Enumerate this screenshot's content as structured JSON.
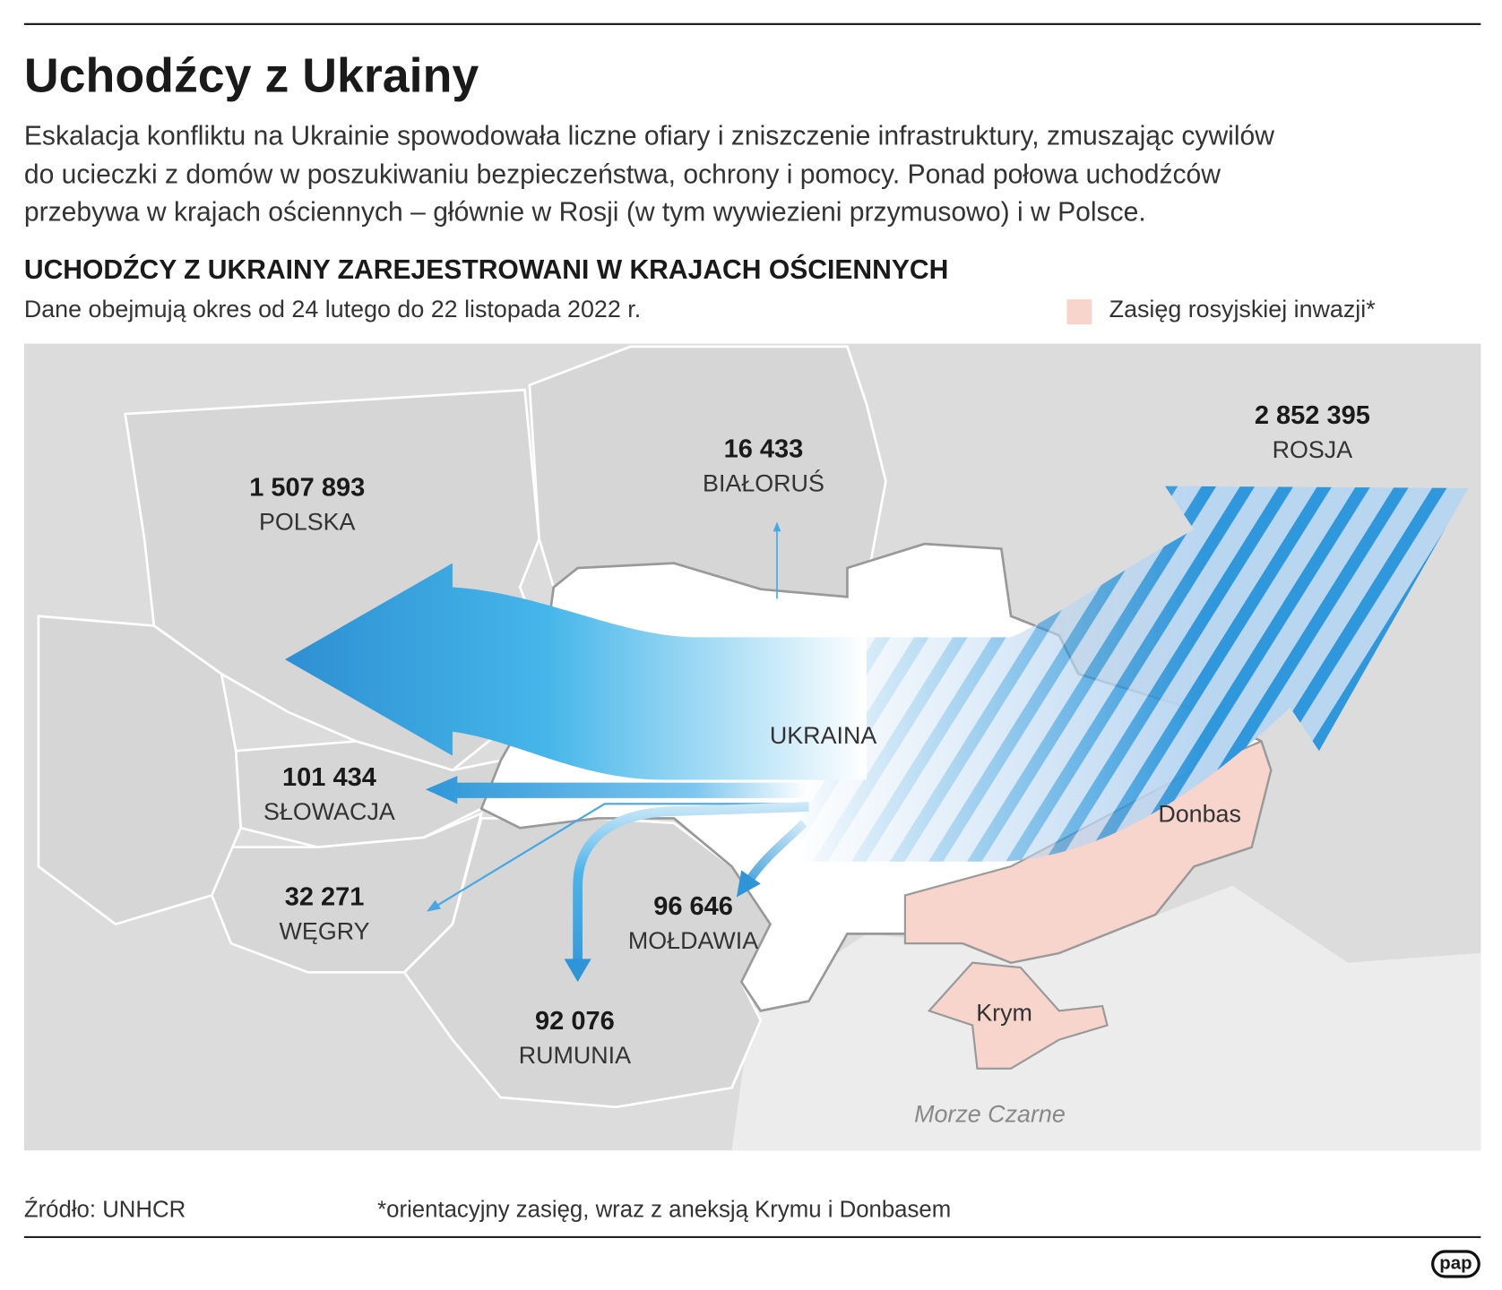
{
  "header": {
    "title": "Uchodźcy z Ukrainy",
    "description": [
      "Eskalacja konfliktu na Ukrainie spowodowała liczne ofiary i zniszczenie infrastruktury, zmuszając cywilów",
      "do ucieczki z domów w poszukiwaniu bezpieczeństwa, ochrony i pomocy. Ponad połowa uchodźców",
      "przebywa w krajach ościennych – głównie w Rosji (w tym wywiezieni przymusowo) i w Polsce."
    ]
  },
  "map": {
    "title": "UCHODŹCY Z UKRAINY ZAREJESTROWANI W KRAJACH OŚCIENNYCH",
    "subtitle": "Dane obejmują okres od 24 lutego do 22 listopada 2022 r.",
    "legend": "Zasięg rosyjskiej inwazji*",
    "countries": [
      {
        "name": "ROSJA",
        "refugees": "2 852 395"
      },
      {
        "name": "POLSKA",
        "refugees": "1 507 893"
      },
      {
        "name": "SŁOWACJA",
        "refugees": "101 434"
      },
      {
        "name": "MOŁDAWIA",
        "refugees": "96 646"
      },
      {
        "name": "RUMUNIA",
        "refugees": "92 076"
      },
      {
        "name": "WĘGRY",
        "refugees": "32 271"
      },
      {
        "name": "BIAŁORUŚ",
        "refugees": "16 433"
      }
    ],
    "labels": {
      "ukraine": "UKRAINA",
      "donbas": "Donbas",
      "crimea": "Krym",
      "sea": "Morze Czarne"
    }
  },
  "footer": {
    "source": "Źródło: UNHCR",
    "note": "*orientacyjny zasięg, wraz z aneksją Krymu i Donbasem",
    "logo": "pap"
  }
}
